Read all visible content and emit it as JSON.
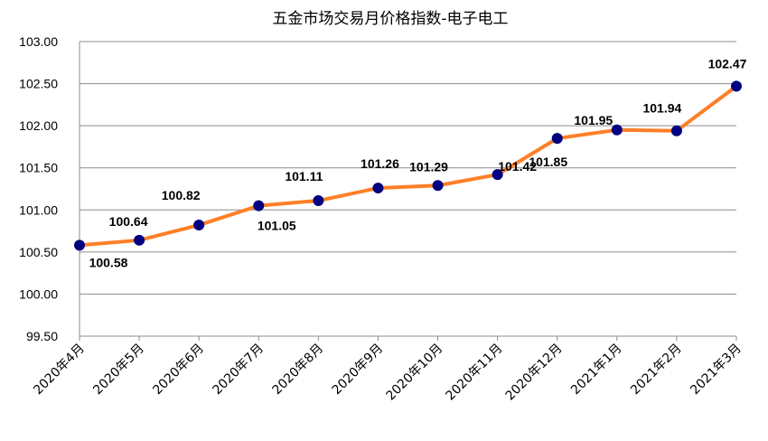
{
  "chart_data": {
    "type": "line",
    "title": "五金市场交易月价格指数-电子电工",
    "categories": [
      "2020年4月",
      "2020年5月",
      "2020年6月",
      "2020年7月",
      "2020年8月",
      "2020年9月",
      "2020年10月",
      "2020年11月",
      "2020年12月",
      "2021年1月",
      "2021年2月",
      "2021年3月"
    ],
    "series": [
      {
        "values": [
          100.58,
          100.64,
          100.82,
          101.05,
          101.11,
          101.26,
          101.29,
          101.42,
          101.85,
          101.95,
          101.94,
          102.47
        ]
      }
    ],
    "data_labels": [
      "100.58",
      "100.64",
      "100.82",
      "101.05",
      "101.11",
      "101.26",
      "101.29",
      "101.42",
      "101.85",
      "101.95",
      "101.94",
      "102.47"
    ],
    "y_ticks": [
      "99.50",
      "100.00",
      "100.50",
      "101.00",
      "101.50",
      "102.00",
      "102.50",
      "103.00"
    ],
    "ylim": [
      99.5,
      103.0
    ],
    "grid": true,
    "legend": "none",
    "colors": {
      "line": "#ff7f27",
      "marker": "#000080",
      "grid": "#8c8c8c"
    }
  }
}
